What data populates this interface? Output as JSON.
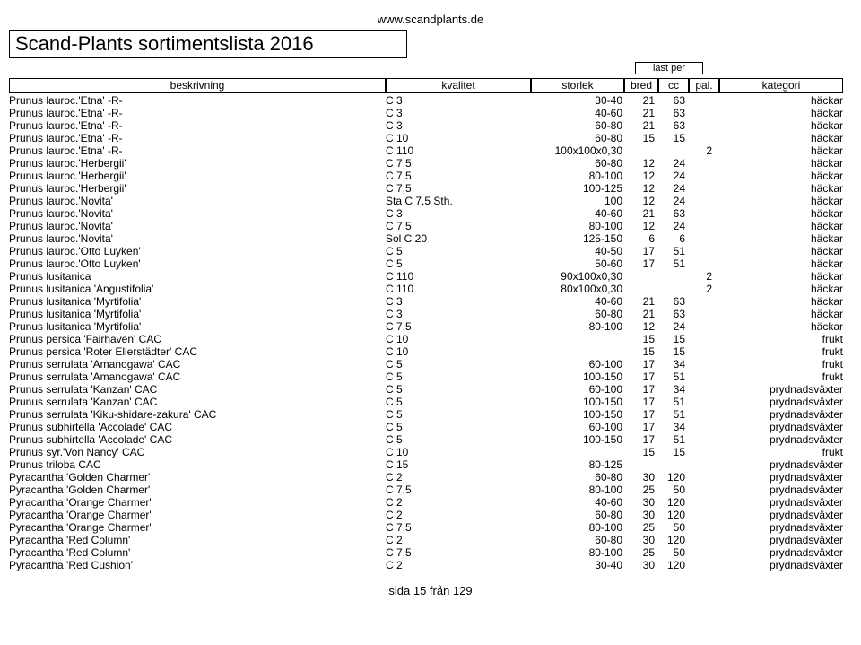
{
  "url": "www.scandplants.de",
  "title": "Scand-Plants sortimentslista 2016",
  "headers": {
    "last_per": "last per",
    "beskrivning": "beskrivning",
    "kvalitet": "kvalitet",
    "storlek": "storlek",
    "bred": "bred",
    "cc": "cc",
    "pal": "pal.",
    "kategori": "kategori"
  },
  "rows": [
    {
      "besk": "Prunus lauroc.'Etna'  -R-",
      "kval": "C 3",
      "stor": "30-40",
      "bred": "21",
      "cc": "63",
      "pal": "",
      "kat": "häckar"
    },
    {
      "besk": "Prunus lauroc.'Etna'  -R-",
      "kval": "C 3",
      "stor": "40-60",
      "bred": "21",
      "cc": "63",
      "pal": "",
      "kat": "häckar"
    },
    {
      "besk": "Prunus lauroc.'Etna'  -R-",
      "kval": "C 3",
      "stor": "60-80",
      "bred": "21",
      "cc": "63",
      "pal": "",
      "kat": "häckar"
    },
    {
      "besk": "Prunus lauroc.'Etna'  -R-",
      "kval": "C 10",
      "stor": "60-80",
      "bred": "15",
      "cc": "15",
      "pal": "",
      "kat": "häckar"
    },
    {
      "besk": "Prunus lauroc.'Etna'  -R-",
      "kval": "C 110",
      "stor": "100x100x0,30",
      "bred": "",
      "cc": "",
      "pal": "2",
      "kat": "häckar"
    },
    {
      "besk": "Prunus lauroc.'Herbergii'",
      "kval": "C 7,5",
      "stor": "60-80",
      "bred": "12",
      "cc": "24",
      "pal": "",
      "kat": "häckar"
    },
    {
      "besk": "Prunus lauroc.'Herbergii'",
      "kval": "C 7,5",
      "stor": "80-100",
      "bred": "12",
      "cc": "24",
      "pal": "",
      "kat": "häckar"
    },
    {
      "besk": "Prunus lauroc.'Herbergii'",
      "kval": "C 7,5",
      "stor": "100-125",
      "bred": "12",
      "cc": "24",
      "pal": "",
      "kat": "häckar"
    },
    {
      "besk": "Prunus lauroc.'Novita'",
      "kval": "Sta C 7,5 Sth.",
      "stor": "100",
      "bred": "12",
      "cc": "24",
      "pal": "",
      "kat": "häckar"
    },
    {
      "besk": "Prunus lauroc.'Novita'",
      "kval": "C 3",
      "stor": "40-60",
      "bred": "21",
      "cc": "63",
      "pal": "",
      "kat": "häckar"
    },
    {
      "besk": "Prunus lauroc.'Novita'",
      "kval": "C 7,5",
      "stor": "80-100",
      "bred": "12",
      "cc": "24",
      "pal": "",
      "kat": "häckar"
    },
    {
      "besk": "Prunus lauroc.'Novita'",
      "kval": "Sol C 20",
      "stor": "125-150",
      "bred": "6",
      "cc": "6",
      "pal": "",
      "kat": "häckar"
    },
    {
      "besk": "Prunus lauroc.'Otto Luyken'",
      "kval": "C 5",
      "stor": "40-50",
      "bred": "17",
      "cc": "51",
      "pal": "",
      "kat": "häckar"
    },
    {
      "besk": "Prunus lauroc.'Otto Luyken'",
      "kval": "C 5",
      "stor": "50-60",
      "bred": "17",
      "cc": "51",
      "pal": "",
      "kat": "häckar"
    },
    {
      "besk": "Prunus lusitanica",
      "kval": "C 110",
      "stor": "90x100x0,30",
      "bred": "",
      "cc": "",
      "pal": "2",
      "kat": "häckar"
    },
    {
      "besk": "Prunus lusitanica 'Angustifolia'",
      "kval": "C 110",
      "stor": "80x100x0,30",
      "bred": "",
      "cc": "",
      "pal": "2",
      "kat": "häckar"
    },
    {
      "besk": "Prunus lusitanica 'Myrtifolia'",
      "kval": "C 3",
      "stor": "40-60",
      "bred": "21",
      "cc": "63",
      "pal": "",
      "kat": "häckar"
    },
    {
      "besk": "Prunus lusitanica 'Myrtifolia'",
      "kval": "C 3",
      "stor": "60-80",
      "bred": "21",
      "cc": "63",
      "pal": "",
      "kat": "häckar"
    },
    {
      "besk": "Prunus lusitanica 'Myrtifolia'",
      "kval": "C 7,5",
      "stor": "80-100",
      "bred": "12",
      "cc": "24",
      "pal": "",
      "kat": "häckar"
    },
    {
      "besk": "Prunus persica 'Fairhaven'             CAC",
      "kval": "C 10",
      "stor": "",
      "bred": "15",
      "cc": "15",
      "pal": "",
      "kat": "frukt"
    },
    {
      "besk": "Prunus persica 'Roter Ellerstädter'   CAC",
      "kval": "C 10",
      "stor": "",
      "bred": "15",
      "cc": "15",
      "pal": "",
      "kat": "frukt"
    },
    {
      "besk": "Prunus serrulata 'Amanogawa'       CAC",
      "kval": "C 5",
      "stor": "60-100",
      "bred": "17",
      "cc": "34",
      "pal": "",
      "kat": "frukt"
    },
    {
      "besk": "Prunus serrulata 'Amanogawa'       CAC",
      "kval": "C 5",
      "stor": "100-150",
      "bred": "17",
      "cc": "51",
      "pal": "",
      "kat": "frukt"
    },
    {
      "besk": "Prunus serrulata 'Kanzan'          CAC",
      "kval": "C 5",
      "stor": "60-100",
      "bred": "17",
      "cc": "34",
      "pal": "",
      "kat": "prydnadsväxter"
    },
    {
      "besk": "Prunus serrulata 'Kanzan'          CAC",
      "kval": "C 5",
      "stor": "100-150",
      "bred": "17",
      "cc": "51",
      "pal": "",
      "kat": "prydnadsväxter"
    },
    {
      "besk": "Prunus serrulata 'Kiku-shidare-zakura' CAC",
      "kval": "C 5",
      "stor": "100-150",
      "bred": "17",
      "cc": "51",
      "pal": "",
      "kat": "prydnadsväxter"
    },
    {
      "besk": "Prunus subhirtella 'Accolade'       CAC",
      "kval": "C 5",
      "stor": "60-100",
      "bred": "17",
      "cc": "34",
      "pal": "",
      "kat": "prydnadsväxter"
    },
    {
      "besk": "Prunus subhirtella 'Accolade'       CAC",
      "kval": "C 5",
      "stor": "100-150",
      "bred": "17",
      "cc": "51",
      "pal": "",
      "kat": "prydnadsväxter"
    },
    {
      "besk": "Prunus syr.'Von Nancy'              CAC",
      "kval": "C 10",
      "stor": "",
      "bred": "15",
      "cc": "15",
      "pal": "",
      "kat": "frukt"
    },
    {
      "besk": "Prunus triloba                          CAC",
      "kval": "C 15",
      "stor": "80-125",
      "bred": "",
      "cc": "",
      "pal": "",
      "kat": "prydnadsväxter"
    },
    {
      "besk": "Pyracantha 'Golden Charmer'",
      "kval": "C 2",
      "stor": "60-80",
      "bred": "30",
      "cc": "120",
      "pal": "",
      "kat": "prydnadsväxter"
    },
    {
      "besk": "Pyracantha 'Golden Charmer'",
      "kval": "C 7,5",
      "stor": "80-100",
      "bred": "25",
      "cc": "50",
      "pal": "",
      "kat": "prydnadsväxter"
    },
    {
      "besk": "Pyracantha 'Orange Charmer'",
      "kval": "C 2",
      "stor": "40-60",
      "bred": "30",
      "cc": "120",
      "pal": "",
      "kat": "prydnadsväxter"
    },
    {
      "besk": "Pyracantha 'Orange Charmer'",
      "kval": "C 2",
      "stor": "60-80",
      "bred": "30",
      "cc": "120",
      "pal": "",
      "kat": "prydnadsväxter"
    },
    {
      "besk": "Pyracantha 'Orange Charmer'",
      "kval": "C 7,5",
      "stor": "80-100",
      "bred": "25",
      "cc": "50",
      "pal": "",
      "kat": "prydnadsväxter"
    },
    {
      "besk": "Pyracantha 'Red Column'",
      "kval": "C 2",
      "stor": "60-80",
      "bred": "30",
      "cc": "120",
      "pal": "",
      "kat": "prydnadsväxter"
    },
    {
      "besk": "Pyracantha 'Red Column'",
      "kval": "C 7,5",
      "stor": "80-100",
      "bred": "25",
      "cc": "50",
      "pal": "",
      "kat": "prydnadsväxter"
    },
    {
      "besk": "Pyracantha 'Red Cushion'",
      "kval": "C 2",
      "stor": "30-40",
      "bred": "30",
      "cc": "120",
      "pal": "",
      "kat": "prydnadsväxter"
    }
  ],
  "footer": "sida 15 från 129"
}
